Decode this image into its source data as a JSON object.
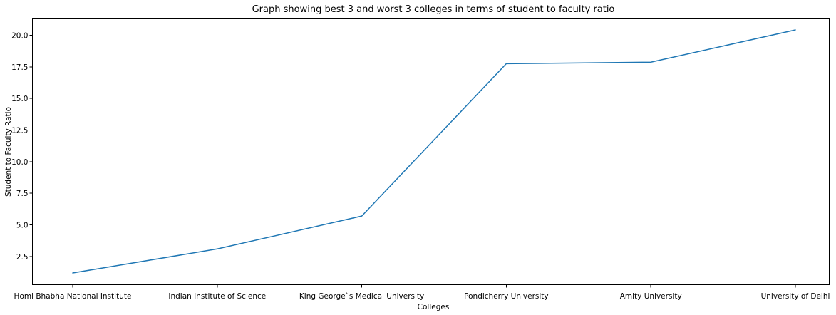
{
  "chart_data": {
    "type": "line",
    "title": "Graph showing best 3 and worst 3 colleges in terms of student to faculty ratio",
    "xlabel": "Colleges",
    "ylabel": "Student to Faculty Ratio",
    "categories": [
      "Homi Bhabha National Institute",
      "Indian Institute of Science",
      "King George`s Medical University",
      "Pondicherry University",
      "Amity University",
      "University of Delhi"
    ],
    "series": [
      {
        "values": [
          1.2,
          3.1,
          5.7,
          17.75,
          17.87,
          20.42
        ],
        "color": "#1f77b4"
      }
    ],
    "ylim": [
      0.27,
      21.35
    ],
    "yticks": [
      2.5,
      5.0,
      7.5,
      10.0,
      12.5,
      15.0,
      17.5,
      20.0
    ],
    "ytick_labels": [
      "2.5",
      "5.0",
      "7.5",
      "10.0",
      "12.5",
      "15.0",
      "17.5",
      "20.0"
    ],
    "grid": false,
    "legend": "none"
  }
}
